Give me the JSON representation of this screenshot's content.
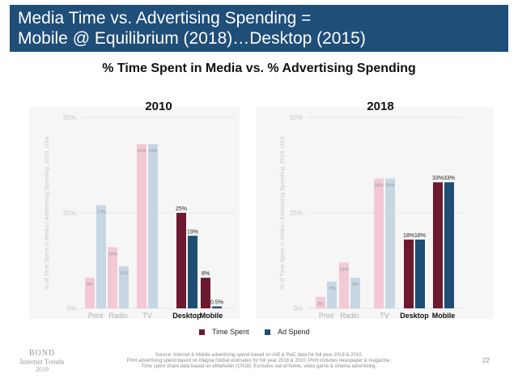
{
  "header": {
    "line1": "Media Time vs. Advertising Spending =",
    "line2": "Mobile @ Equilibrium (2018)…Desktop (2015)"
  },
  "subtitle": "% Time Spent in Media vs. % Advertising Spending",
  "legend": {
    "time_spent": "Time Spent",
    "ad_spend": "Ad Spend"
  },
  "colors": {
    "time_strong": "#6b1a2f",
    "ad_strong": "#1d4e73",
    "time_faded": "#f2c9d4",
    "ad_faded": "#c7d6e3",
    "grid": "#e6e6e6",
    "axis_text": "#c8c8c8"
  },
  "chart_data": [
    {
      "type": "bar",
      "title": "2010",
      "ylabel": "% of Time Spent in Media / Advertising Spending, 2010, USA",
      "ylim": [
        0,
        50
      ],
      "yticks": [
        "0%",
        "25%",
        "50%"
      ],
      "categories": [
        "Print",
        "Radio",
        "TV",
        "Desktop",
        "Mobile"
      ],
      "highlighted": [
        "Desktop",
        "Mobile"
      ],
      "series": [
        {
          "name": "Time Spent",
          "values": [
            8,
            16,
            43,
            25,
            8
          ],
          "labels": [
            "8%",
            "16%",
            "43%",
            "25%",
            "8%"
          ]
        },
        {
          "name": "Ad Spend",
          "values": [
            27,
            11,
            43,
            19,
            0.5
          ],
          "labels": [
            "27%",
            "11%",
            "43%",
            "19%",
            "0.5%"
          ]
        }
      ]
    },
    {
      "type": "bar",
      "title": "2018",
      "ylabel": "% of Time Spent in Media / Advertising Spending, 2018, USA",
      "ylim": [
        0,
        50
      ],
      "yticks": [
        "0%",
        "25%",
        "50%"
      ],
      "categories": [
        "Print",
        "Radio",
        "TV",
        "Desktop",
        "Mobile"
      ],
      "highlighted": [
        "Desktop",
        "Mobile"
      ],
      "series": [
        {
          "name": "Time Spent",
          "values": [
            3,
            12,
            34,
            18,
            33
          ],
          "labels": [
            "3%",
            "12%",
            "34%",
            "18%",
            "33%"
          ]
        },
        {
          "name": "Ad Spend",
          "values": [
            7,
            8,
            34,
            18,
            33
          ],
          "labels": [
            "7%",
            "8%",
            "34%",
            "18%",
            "33%"
          ]
        }
      ]
    }
  ],
  "footer": {
    "bond_line1": "BOND",
    "bond_line2": "Internet Trends",
    "bond_line3": "2019",
    "source_line1": "Source: Internet & Mobile advertising spend based on IAB & PwC data for full year 2018 & 2010.",
    "source_line2": "Print advertising spend based on Magna Global estimates for full year 2018 & 2010. Print includes newspaper & magazine.",
    "source_line3": "Time spent share data based on eMarketer (10/18). Excludes out-of-home, video game & cinema advertising.",
    "page_number": "22"
  }
}
